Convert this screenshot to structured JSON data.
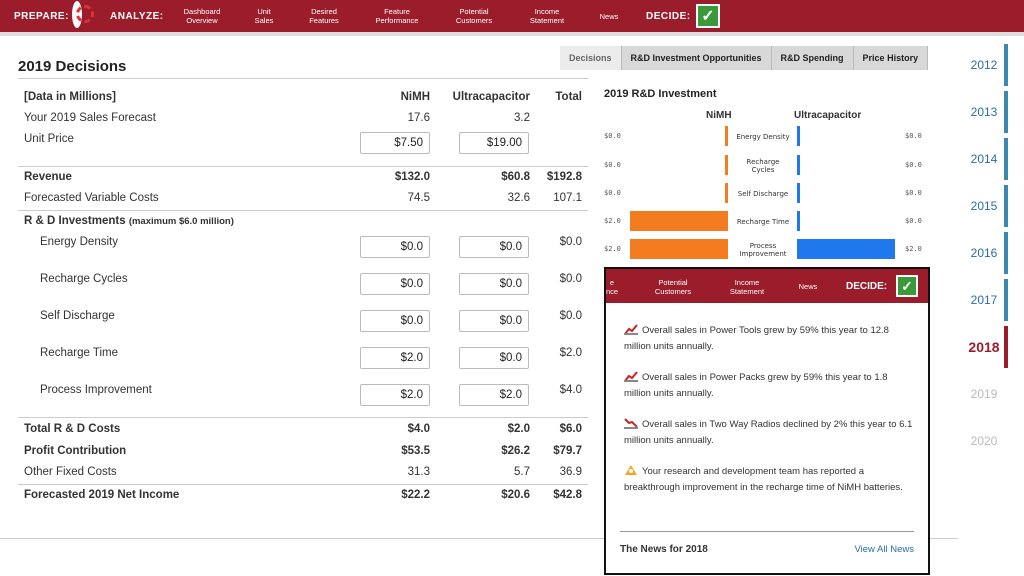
{
  "topbar": {
    "prepare": "PREPARE:",
    "analyze": "ANALYZE:",
    "decide": "DECIDE:",
    "nav": [
      "Dashboard\nOverview",
      "Unit\nSales",
      "Desired\nFeatures",
      "Feature\nPerformance",
      "Potential\nCustomers",
      "Income\nStatement",
      "News"
    ]
  },
  "title": "2019 Decisions",
  "table": {
    "header": [
      "[Data in Millions]",
      "NiMH",
      "Ultracapacitor",
      "Total"
    ],
    "sales_forecast": [
      "Your 2019 Sales Forecast",
      "17.6",
      "3.2"
    ],
    "unit_price": [
      "Unit Price",
      "$7.50",
      "$19.00"
    ],
    "revenue": [
      "Revenue",
      "$132.0",
      "$60.8",
      "$192.8"
    ],
    "variable_costs": [
      "Forecasted Variable Costs",
      "74.5",
      "32.6",
      "107.1"
    ],
    "rd_header": "R & D Investments",
    "rd_note": "(maximum $6.0 million)",
    "rd_rows": [
      [
        "Energy Density",
        "$0.0",
        "$0.0",
        "$0.0"
      ],
      [
        "Recharge Cycles",
        "$0.0",
        "$0.0",
        "$0.0"
      ],
      [
        "Self Discharge",
        "$0.0",
        "$0.0",
        "$0.0"
      ],
      [
        "Recharge Time",
        "$2.0",
        "$0.0",
        "$2.0"
      ],
      [
        "Process Improvement",
        "$2.0",
        "$2.0",
        "$4.0"
      ]
    ],
    "total_rd": [
      "Total R & D Costs",
      "$4.0",
      "$2.0",
      "$6.0"
    ],
    "profit_contribution": [
      "Profit Contribution",
      "$53.5",
      "$26.2",
      "$79.7"
    ],
    "other_fixed": [
      "Other Fixed Costs",
      "31.3",
      "5.7",
      "36.9"
    ],
    "net_income": [
      "Forecasted 2019 Net Income",
      "$22.2",
      "$20.6",
      "$42.8"
    ]
  },
  "tabs": [
    "Decisions",
    "R&D Investment Opportunities",
    "R&D Spending",
    "Price History"
  ],
  "rd_chart": {
    "title": "2019 R&D Investment",
    "left_label": "NiMH",
    "right_label": "Ultracapacitor",
    "rows": [
      {
        "label": "Energy Density",
        "nimh": 0.0,
        "ultra": 0.0,
        "nimh_text": "$0.0",
        "ultra_text": "$0.0"
      },
      {
        "label": "Recharge\nCycles",
        "nimh": 0.0,
        "ultra": 0.0,
        "nimh_text": "$0.0",
        "ultra_text": "$0.0"
      },
      {
        "label": "Self Discharge",
        "nimh": 0.0,
        "ultra": 0.0,
        "nimh_text": "$0.0",
        "ultra_text": "$0.0"
      },
      {
        "label": "Recharge Time",
        "nimh": 2.0,
        "ultra": 0.0,
        "nimh_text": "$2.0",
        "ultra_text": "$0.0"
      },
      {
        "label": "Process\nImprovement",
        "nimh": 2.0,
        "ultra": 2.0,
        "nimh_text": "$2.0",
        "ultra_text": "$2.0"
      }
    ]
  },
  "popup": {
    "nav": [
      "e\nnce",
      "Potential\nCustomers",
      "Income\nStatement",
      "News"
    ],
    "decide": "DECIDE:",
    "news": [
      {
        "icon": "chart-up-icon",
        "text": "Overall sales in Power Tools grew by 59% this year to 12.8 million units annually."
      },
      {
        "icon": "chart-up-icon",
        "text": "Overall sales in Power Packs grew by 59% this year to 1.8 million units annually."
      },
      {
        "icon": "chart-down-icon",
        "text": "Overall sales in Two Way Radios declined by 2% this year to 6.1 million units annually."
      },
      {
        "icon": "research-icon",
        "text": "Your research and development team has reported a breakthrough improvement in the recharge time of NiMH batteries."
      }
    ],
    "footer_title": "The News for 2018",
    "view_all": "View All News"
  },
  "years": [
    "2012",
    "2013",
    "2014",
    "2015",
    "2016",
    "2017",
    "2018",
    "2019",
    "2020"
  ],
  "current_year": "2018",
  "colors": {
    "brand": "#9b1c2b",
    "nimh": "#f47c20",
    "ultra": "#1f78ee",
    "year_stripe": "#3a88b0"
  }
}
